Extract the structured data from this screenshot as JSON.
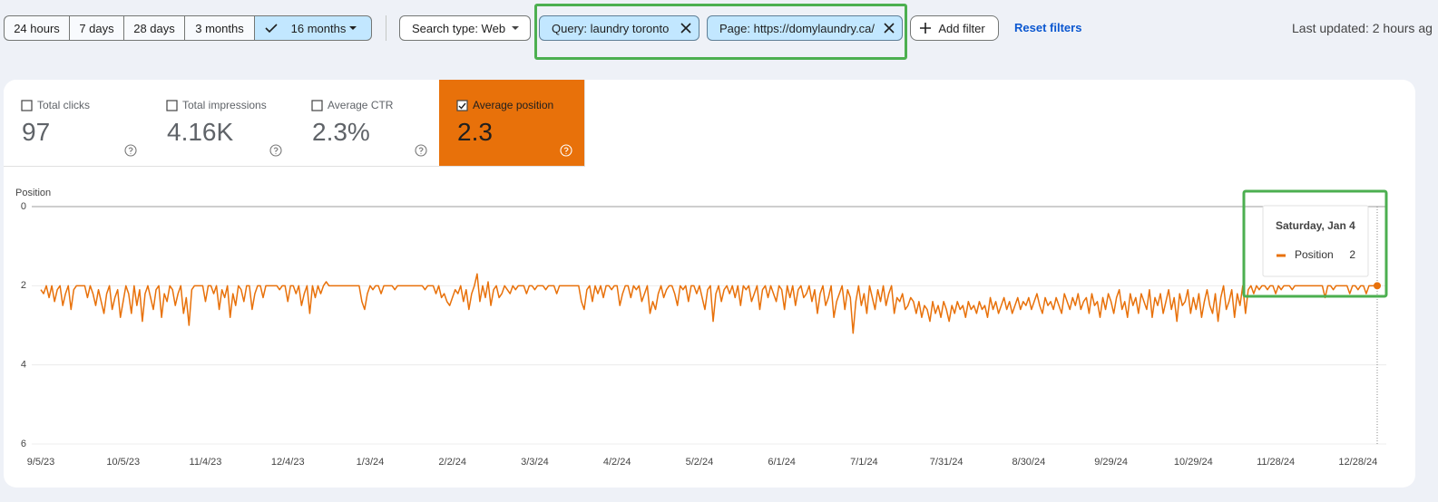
{
  "toolbar": {
    "date_ranges": [
      "24 hours",
      "7 days",
      "28 days",
      "3 months",
      "16 months"
    ],
    "search_type": "Search type: Web",
    "filters": [
      "Query: laundry toronto",
      "Page: https://domylaundry.ca/"
    ],
    "add_filter": "Add filter",
    "reset_filters": "Reset filters",
    "last_updated": "Last updated: 2 hours ag"
  },
  "metrics": [
    {
      "label": "Total clicks",
      "value": "97",
      "selected": false
    },
    {
      "label": "Total impressions",
      "value": "4.16K",
      "selected": false
    },
    {
      "label": "Average CTR",
      "value": "2.3%",
      "selected": false
    },
    {
      "label": "Average position",
      "value": "2.3",
      "selected": true
    }
  ],
  "chart_data": {
    "type": "line",
    "y_label": "Position",
    "y_inverted": true,
    "grid": true,
    "ylim": [
      0,
      6
    ],
    "yticks": [
      0,
      2,
      4,
      6
    ],
    "xlim": [
      0,
      487
    ],
    "xticks": [
      {
        "value": 0,
        "label": "9/5/23"
      },
      {
        "value": 30,
        "label": "10/5/23"
      },
      {
        "value": 60,
        "label": "11/4/23"
      },
      {
        "value": 90,
        "label": "12/4/23"
      },
      {
        "value": 120,
        "label": "1/3/24"
      },
      {
        "value": 150,
        "label": "2/2/24"
      },
      {
        "value": 180,
        "label": "3/3/24"
      },
      {
        "value": 210,
        "label": "4/2/24"
      },
      {
        "value": 240,
        "label": "5/2/24"
      },
      {
        "value": 270,
        "label": "6/1/24"
      },
      {
        "value": 300,
        "label": "7/1/24"
      },
      {
        "value": 330,
        "label": "7/31/24"
      },
      {
        "value": 360,
        "label": "8/30/24"
      },
      {
        "value": 390,
        "label": "9/29/24"
      },
      {
        "value": 420,
        "label": "10/29/24"
      },
      {
        "value": 450,
        "label": "11/28/24"
      },
      {
        "value": 480,
        "label": "12/28/24"
      }
    ],
    "tooltip_title": "Saturday, Jan 4",
    "series": [
      {
        "name": "Position",
        "color": "#e8710a",
        "values": [
          2.1,
          2.2,
          2.0,
          2.3,
          2.0,
          2.4,
          2.1,
          2.0,
          2.5,
          2.2,
          2.0,
          2.6,
          2.1,
          2.0,
          2.0,
          2.0,
          2.0,
          2.3,
          2.0,
          2.2,
          2.5,
          2.1,
          2.4,
          2.7,
          2.2,
          2.0,
          2.6,
          2.3,
          2.1,
          2.8,
          2.4,
          2.0,
          2.2,
          2.7,
          2.0,
          2.5,
          2.1,
          2.9,
          2.2,
          2.0,
          2.3,
          2.6,
          2.1,
          2.0,
          2.8,
          2.2,
          2.4,
          2.0,
          2.1,
          2.5,
          2.2,
          2.0,
          2.7,
          2.3,
          3.0,
          2.1,
          2.0,
          2.0,
          2.0,
          2.0,
          2.4,
          2.0,
          2.0,
          2.2,
          2.0,
          2.6,
          2.1,
          2.3,
          2.0,
          2.8,
          2.2,
          2.5,
          2.0,
          2.1,
          2.4,
          2.0,
          2.0,
          2.6,
          2.2,
          2.0,
          2.0,
          2.3,
          2.0,
          2.0,
          2.0,
          2.0,
          2.0,
          2.1,
          2.0,
          2.0,
          2.4,
          2.0,
          2.0,
          2.2,
          2.0,
          2.5,
          2.2,
          2.0,
          2.7,
          2.0,
          2.3,
          2.0,
          2.2,
          2.0,
          1.9,
          2.0,
          2.0,
          2.0,
          2.0,
          2.0,
          2.0,
          2.0,
          2.0,
          2.0,
          2.0,
          2.0,
          2.0,
          2.4,
          2.6,
          2.2,
          2.0,
          2.1,
          2.0,
          2.0,
          2.2,
          2.0,
          2.0,
          2.0,
          2.0,
          2.1,
          2.0,
          2.0,
          2.0,
          2.0,
          2.0,
          2.0,
          2.0,
          2.0,
          2.0,
          2.0,
          2.1,
          2.0,
          2.0,
          2.0,
          2.2,
          2.0,
          2.3,
          2.2,
          2.4,
          2.5,
          2.3,
          2.1,
          2.2,
          2.0,
          2.4,
          2.1,
          2.6,
          2.2,
          2.0,
          1.7,
          2.4,
          2.0,
          2.3,
          1.9,
          2.5,
          2.1,
          2.0,
          2.3,
          2.2,
          2.0,
          2.1,
          2.2,
          2.0,
          2.1,
          2.0,
          2.0,
          2.0,
          2.2,
          2.0,
          2.0,
          2.1,
          2.0,
          2.0,
          2.0,
          2.1,
          2.0,
          2.0,
          2.0,
          2.2,
          2.0,
          2.0,
          2.0,
          2.0,
          2.0,
          2.0,
          2.0,
          2.0,
          2.4,
          2.6,
          2.1,
          2.0,
          2.4,
          2.0,
          2.2,
          2.0,
          2.3,
          2.0,
          2.0,
          2.1,
          2.0,
          2.0,
          2.5,
          2.2,
          2.0,
          2.0,
          2.3,
          2.0,
          2.1,
          2.0,
          2.4,
          2.2,
          2.0,
          2.7,
          2.4,
          2.6,
          2.2,
          2.0,
          2.3,
          2.1,
          2.0,
          2.0,
          2.2,
          2.5,
          2.0,
          2.1,
          2.0,
          2.4,
          2.0,
          2.0,
          2.2,
          2.0,
          2.3,
          2.6,
          2.1,
          2.0,
          2.9,
          2.2,
          2.0,
          2.4,
          2.1,
          2.0,
          2.2,
          2.0,
          2.3,
          2.0,
          2.5,
          2.0,
          2.1,
          2.0,
          2.4,
          2.2,
          2.0,
          2.6,
          2.1,
          2.0,
          2.3,
          2.0,
          2.2,
          2.4,
          2.0,
          2.1,
          2.6,
          2.0,
          2.3,
          2.0,
          2.5,
          2.1,
          2.0,
          2.3,
          2.2,
          2.0,
          2.4,
          2.1,
          2.7,
          2.2,
          2.0,
          2.5,
          2.3,
          2.0,
          2.8,
          2.4,
          2.2,
          2.0,
          2.6,
          2.1,
          2.3,
          3.2,
          2.4,
          2.0,
          2.5,
          2.2,
          2.7,
          2.0,
          2.3,
          2.6,
          2.1,
          2.4,
          2.0,
          2.5,
          2.2,
          2.0,
          2.7,
          2.3,
          2.4,
          2.2,
          2.6,
          2.5,
          2.3,
          2.4,
          2.7,
          2.4,
          2.8,
          2.5,
          2.6,
          2.9,
          2.4,
          2.7,
          2.5,
          2.8,
          2.4,
          2.6,
          2.9,
          2.5,
          2.7,
          2.4,
          2.6,
          2.5,
          2.8,
          2.4,
          2.6,
          2.5,
          2.7,
          2.4,
          2.6,
          2.5,
          2.8,
          2.3,
          2.6,
          2.4,
          2.7,
          2.5,
          2.3,
          2.6,
          2.4,
          2.7,
          2.5,
          2.3,
          2.6,
          2.4,
          2.5,
          2.3,
          2.6,
          2.4,
          2.2,
          2.5,
          2.7,
          2.3,
          2.5,
          2.4,
          2.6,
          2.3,
          2.5,
          2.7,
          2.2,
          2.4,
          2.6,
          2.3,
          2.5,
          2.2,
          2.6,
          2.4,
          2.3,
          2.7,
          2.2,
          2.5,
          2.4,
          2.8,
          2.3,
          2.6,
          2.2,
          2.4,
          2.7,
          2.3,
          2.1,
          2.6,
          2.4,
          2.8,
          2.2,
          2.5,
          2.3,
          2.7,
          2.2,
          2.4,
          2.6,
          2.1,
          2.8,
          2.3,
          2.5,
          2.2,
          2.7,
          2.4,
          2.1,
          2.6,
          2.3,
          2.9,
          2.2,
          2.5,
          2.4,
          2.1,
          2.7,
          2.3,
          2.6,
          2.2,
          2.8,
          2.4,
          2.1,
          2.5,
          2.7,
          2.2,
          2.9,
          2.3,
          2.0,
          2.6,
          2.4,
          2.1,
          2.8,
          2.2,
          2.5,
          2.0,
          2.7,
          2.1,
          2.0,
          2.2,
          2.0,
          2.1,
          2.0,
          2.0,
          2.1,
          2.0,
          2.0,
          2.2,
          2.0,
          2.1,
          2.0,
          2.0,
          2.0,
          2.1,
          2.0,
          2.0,
          2.0,
          2.0,
          2.0,
          2.0,
          2.0,
          2.0,
          2.0,
          2.0,
          2.0,
          2.3,
          2.0,
          2.0,
          2.1,
          2.0,
          2.0,
          2.0,
          2.0,
          2.0,
          2.2,
          2.0,
          2.0,
          2.1,
          2.0,
          2.0,
          2.2,
          2.0,
          2.0,
          2.0,
          2
        ]
      }
    ]
  }
}
